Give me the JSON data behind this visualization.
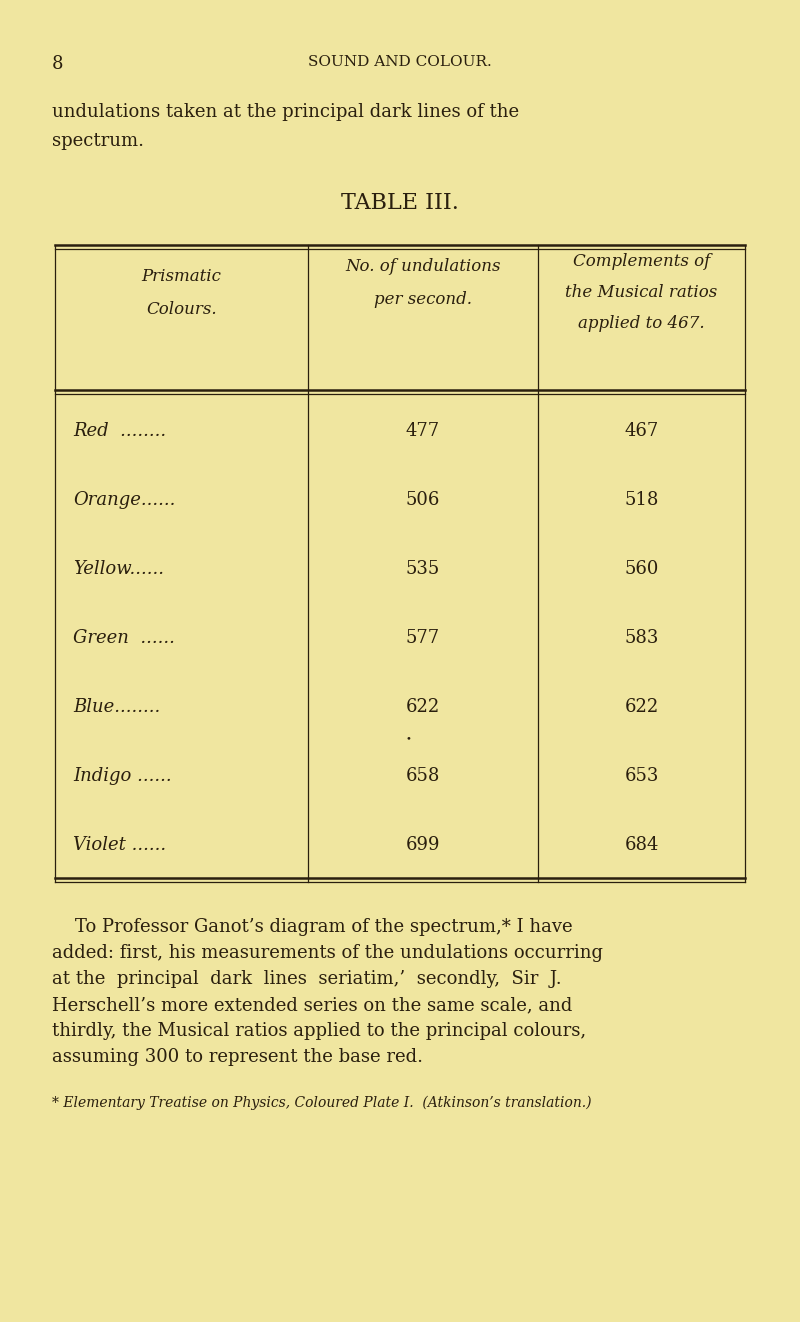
{
  "background_color": "#f0e6a0",
  "page_number": "8",
  "header": "SOUND AND COLOUR.",
  "intro_line1": "undulations taken at the principal dark lines of the",
  "intro_line2": "spectrum.",
  "table_title": "TABLE III.",
  "col_header1_line1": "Prismatic",
  "col_header1_line2": "Colours.",
  "col_header2_line1": "No. of undulations",
  "col_header2_line2": "per second.",
  "col_header3_line1": "Complements of",
  "col_header3_line2": "the Musical ratios",
  "col_header3_line3": "applied to 467.",
  "row_labels": [
    "Red         ",
    "Orange      ",
    "Yellow      ",
    "Green      ",
    "Blue        ",
    "Indigo      ",
    "Violet      "
  ],
  "row_labels_dots": [
    "Red  ........",
    "Orange......",
    "Yellow......",
    "Green  ......",
    "Blue........",
    "Indigo ......",
    "Violet ......"
  ],
  "col2_values": [
    "477",
    "506",
    "535",
    "577",
    "622",
    "658",
    "699"
  ],
  "col3_values": [
    "467",
    "518",
    "560",
    "583",
    "622",
    "653",
    "684"
  ],
  "footer_lines": [
    "    To Professor Ganot’s diagram of the spectrum,* I have",
    "added: first, his measurements of the undulations occurring",
    "at the  principal  dark  lines  seriatim,’  secondly,  Sir  J.",
    "Herschell’s more extended series on the same scale, and",
    "thirdly, the Musical ratios applied to the principal colours,",
    "assuming 300 to represent the base red."
  ],
  "footnote": "* Elementary Treatise on Physics, Coloured Plate I.  (Atkinson’s translation.)",
  "text_color": "#2a1f0e",
  "table_border_color": "#2a1f0e",
  "font_size_page_num": 13,
  "font_size_header": 11,
  "font_size_body": 13,
  "font_size_title": 16,
  "font_size_col_header": 12,
  "font_size_row": 13,
  "font_size_footer": 13,
  "font_size_footnote": 10
}
